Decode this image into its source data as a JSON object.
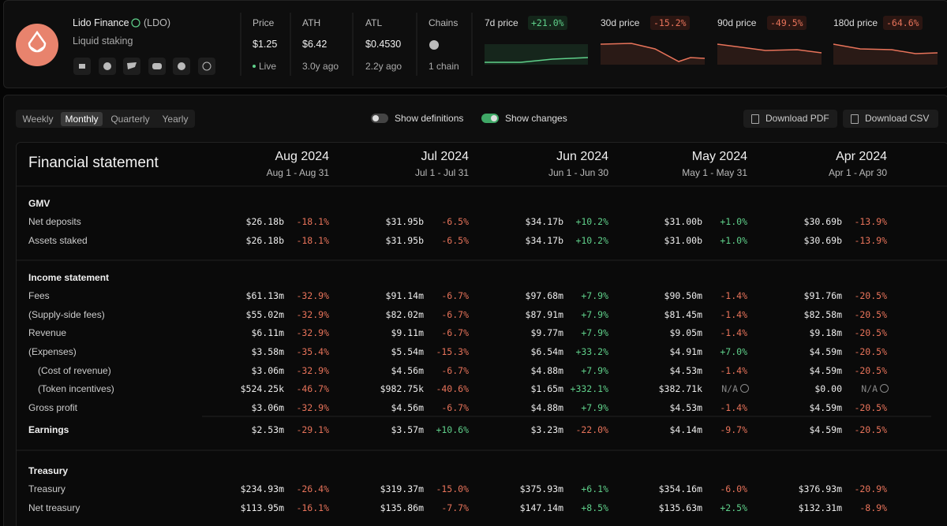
{
  "header": {
    "name": "Lido Finance",
    "ticker": "(LDO)",
    "subtitle": "Liquid staking",
    "stats": [
      {
        "label": "Price",
        "value": "$1.25",
        "sub": "Live"
      },
      {
        "label": "ATH",
        "value": "$6.42",
        "sub": "3.0y ago"
      },
      {
        "label": "ATL",
        "value": "$0.4530",
        "sub": "2.2y ago"
      },
      {
        "label": "Chains",
        "sub": "1 chain"
      }
    ],
    "sparklines": [
      {
        "label": "7d price",
        "change": "+21.0%"
      },
      {
        "label": "30d price",
        "change": "-15.2%"
      },
      {
        "label": "90d price",
        "change": "-49.5%"
      },
      {
        "label": "180d price",
        "change": "-64.6%"
      }
    ]
  },
  "toolbar": {
    "tabs": [
      "Weekly",
      "Monthly",
      "Quarterly",
      "Yearly"
    ],
    "active_tab": 1,
    "toggles": [
      {
        "label": "Show definitions",
        "on": false
      },
      {
        "label": "Show changes",
        "on": true
      }
    ],
    "buttons": [
      "Download PDF",
      "Download CSV"
    ]
  },
  "table": {
    "title": "Financial statement",
    "columns": [
      {
        "month": "Aug 2024",
        "range": "Aug 1 - Aug 31"
      },
      {
        "month": "Jul 2024",
        "range": "Jul 1 - Jul 31"
      },
      {
        "month": "Jun 2024",
        "range": "Jun 1 - Jun 30"
      },
      {
        "month": "May 2024",
        "range": "May 1 - May 31"
      },
      {
        "month": "Apr 2024",
        "range": "Apr 1 - Apr 30"
      }
    ],
    "sections": [
      {
        "title": "GMV",
        "rows": [
          {
            "label": "Net deposits",
            "cells": [
              [
                "$26.18b",
                "-18.1%"
              ],
              [
                "$31.95b",
                "-6.5%"
              ],
              [
                "$34.17b",
                "+10.2%"
              ],
              [
                "$31.00b",
                "+1.0%"
              ],
              [
                "$30.69b",
                "-13.9%"
              ]
            ]
          },
          {
            "label": "Assets staked",
            "cells": [
              [
                "$26.18b",
                "-18.1%"
              ],
              [
                "$31.95b",
                "-6.5%"
              ],
              [
                "$34.17b",
                "+10.2%"
              ],
              [
                "$31.00b",
                "+1.0%"
              ],
              [
                "$30.69b",
                "-13.9%"
              ]
            ]
          }
        ]
      },
      {
        "title": "Income statement",
        "rows": [
          {
            "label": "Fees",
            "cells": [
              [
                "$61.13m",
                "-32.9%"
              ],
              [
                "$91.14m",
                "-6.7%"
              ],
              [
                "$97.68m",
                "+7.9%"
              ],
              [
                "$90.50m",
                "-1.4%"
              ],
              [
                "$91.76m",
                "-20.5%"
              ]
            ]
          },
          {
            "label": "(Supply-side fees)",
            "cells": [
              [
                "$55.02m",
                "-32.9%"
              ],
              [
                "$82.02m",
                "-6.7%"
              ],
              [
                "$87.91m",
                "+7.9%"
              ],
              [
                "$81.45m",
                "-1.4%"
              ],
              [
                "$82.58m",
                "-20.5%"
              ]
            ]
          },
          {
            "label": "Revenue",
            "cells": [
              [
                "$6.11m",
                "-32.9%"
              ],
              [
                "$9.11m",
                "-6.7%"
              ],
              [
                "$9.77m",
                "+7.9%"
              ],
              [
                "$9.05m",
                "-1.4%"
              ],
              [
                "$9.18m",
                "-20.5%"
              ]
            ]
          },
          {
            "label": "(Expenses)",
            "cells": [
              [
                "$3.58m",
                "-35.4%"
              ],
              [
                "$5.54m",
                "-15.3%"
              ],
              [
                "$6.54m",
                "+33.2%"
              ],
              [
                "$4.91m",
                "+7.0%"
              ],
              [
                "$4.59m",
                "-20.5%"
              ]
            ]
          },
          {
            "label": "(Cost of revenue)",
            "indent": true,
            "cells": [
              [
                "$3.06m",
                "-32.9%"
              ],
              [
                "$4.56m",
                "-6.7%"
              ],
              [
                "$4.88m",
                "+7.9%"
              ],
              [
                "$4.53m",
                "-1.4%"
              ],
              [
                "$4.59m",
                "-20.5%"
              ]
            ]
          },
          {
            "label": "(Token incentives)",
            "indent": true,
            "cells": [
              [
                "$524.25k",
                "-46.7%"
              ],
              [
                "$982.75k",
                "-40.6%"
              ],
              [
                "$1.65m",
                "+332.1%"
              ],
              [
                "$382.71k",
                "N/A"
              ],
              [
                "$0.00",
                "N/A"
              ]
            ]
          },
          {
            "label": "Gross profit",
            "cells": [
              [
                "$3.06m",
                "-32.9%"
              ],
              [
                "$4.56m",
                "-6.7%"
              ],
              [
                "$4.88m",
                "+7.9%"
              ],
              [
                "$4.53m",
                "-1.4%"
              ],
              [
                "$4.59m",
                "-20.5%"
              ]
            ]
          },
          {
            "label": "Earnings",
            "emphasis": true,
            "cells": [
              [
                "$2.53m",
                "-29.1%"
              ],
              [
                "$3.57m",
                "+10.6%"
              ],
              [
                "$3.23m",
                "-22.0%"
              ],
              [
                "$4.14m",
                "-9.7%"
              ],
              [
                "$4.59m",
                "-20.5%"
              ]
            ]
          }
        ]
      },
      {
        "title": "Treasury",
        "rows": [
          {
            "label": "Treasury",
            "cells": [
              [
                "$234.93m",
                "-26.4%"
              ],
              [
                "$319.37m",
                "-15.0%"
              ],
              [
                "$375.93m",
                "+6.1%"
              ],
              [
                "$354.16m",
                "-6.0%"
              ],
              [
                "$376.93m",
                "-20.9%"
              ]
            ]
          },
          {
            "label": "Net treasury",
            "cells": [
              [
                "$113.95m",
                "-16.1%"
              ],
              [
                "$135.86m",
                "-7.7%"
              ],
              [
                "$147.14m",
                "+8.5%"
              ],
              [
                "$135.63m",
                "+2.5%"
              ],
              [
                "$132.31m",
                "-8.9%"
              ]
            ]
          }
        ]
      }
    ]
  }
}
